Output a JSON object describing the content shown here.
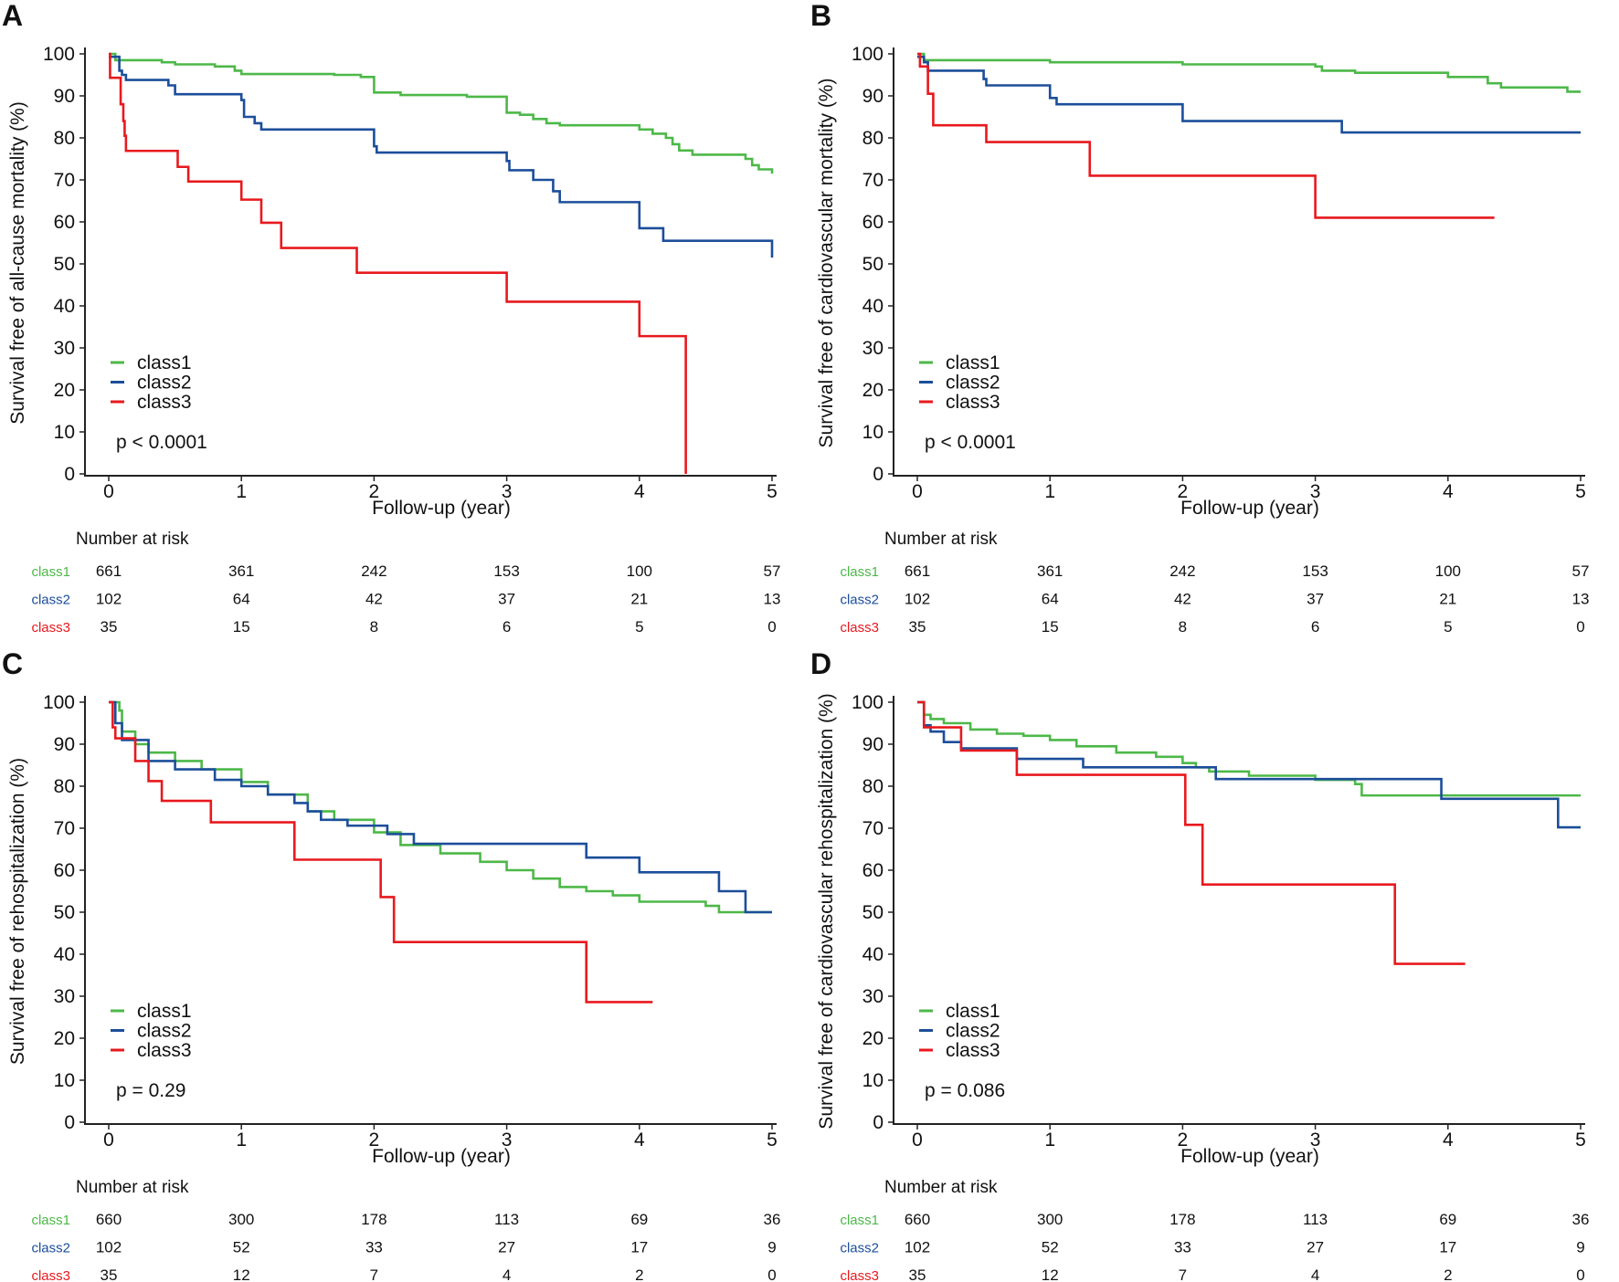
{
  "colors": {
    "class1": "#4db848",
    "class2": "#1c4e9a",
    "class3": "#e8191e"
  },
  "chart_data": [
    {
      "type": "line",
      "panel": "A",
      "ylabel": "Survival free of all-cause mortality (%)",
      "xlabel": "Follow-up (year)",
      "xlim": [
        0,
        5
      ],
      "ylim": [
        0,
        100
      ],
      "xticks": [
        "0",
        "1",
        "2",
        "3",
        "4",
        "5"
      ],
      "yticks": [
        "0",
        "10",
        "20",
        "30",
        "40",
        "50",
        "60",
        "70",
        "80",
        "90",
        "100"
      ],
      "legend": [
        "class1",
        "class2",
        "class3"
      ],
      "legend_position": "bottom-left",
      "pvalue": "p < 0.0001",
      "risk_title": "Number at risk",
      "risk_table": {
        "class1": [
          "661",
          "361",
          "242",
          "153",
          "100",
          "57"
        ],
        "class2": [
          "102",
          "64",
          "42",
          "37",
          "21",
          "13"
        ],
        "class3": [
          "35",
          "15",
          "8",
          "6",
          "5",
          "0"
        ]
      },
      "series": [
        {
          "name": "class1",
          "end": 5,
          "steps": [
            [
              0,
              100
            ],
            [
              0.05,
              98.5
            ],
            [
              0.4,
              98
            ],
            [
              0.5,
              97.5
            ],
            [
              0.8,
              97
            ],
            [
              0.95,
              96
            ],
            [
              1.0,
              95.2
            ],
            [
              1.7,
              95
            ],
            [
              1.9,
              94.5
            ],
            [
              2.0,
              90.8
            ],
            [
              2.2,
              90.2
            ],
            [
              2.7,
              89.8
            ],
            [
              3.0,
              86
            ],
            [
              3.1,
              85.5
            ],
            [
              3.2,
              84.5
            ],
            [
              3.3,
              83.5
            ],
            [
              3.4,
              83
            ],
            [
              4.0,
              82
            ],
            [
              4.1,
              81
            ],
            [
              4.2,
              80
            ],
            [
              4.25,
              78.5
            ],
            [
              4.3,
              77
            ],
            [
              4.4,
              76
            ],
            [
              4.8,
              75
            ],
            [
              4.85,
              73.5
            ],
            [
              4.9,
              72.5
            ],
            [
              5.0,
              71.5
            ]
          ]
        },
        {
          "name": "class2",
          "end": 5,
          "steps": [
            [
              0,
              99.3
            ],
            [
              0.08,
              96
            ],
            [
              0.1,
              95
            ],
            [
              0.13,
              93.8
            ],
            [
              0.45,
              92.5
            ],
            [
              0.5,
              90.4
            ],
            [
              1.0,
              89
            ],
            [
              1.02,
              85
            ],
            [
              1.1,
              83.5
            ],
            [
              1.15,
              82
            ],
            [
              2.0,
              78
            ],
            [
              2.02,
              76.5
            ],
            [
              3.0,
              74.5
            ],
            [
              3.02,
              72.3
            ],
            [
              3.2,
              70
            ],
            [
              3.35,
              67.3
            ],
            [
              3.4,
              64.7
            ],
            [
              4.0,
              58.5
            ],
            [
              4.18,
              55.5
            ],
            [
              5.0,
              51.5
            ]
          ]
        },
        {
          "name": "class3",
          "end": 4.35,
          "steps": [
            [
              0,
              100
            ],
            [
              0.01,
              94.3
            ],
            [
              0.09,
              88
            ],
            [
              0.11,
              84
            ],
            [
              0.12,
              80.5
            ],
            [
              0.13,
              76.9
            ],
            [
              0.52,
              73.1
            ],
            [
              0.6,
              69.6
            ],
            [
              1.0,
              65.3
            ],
            [
              1.15,
              59.8
            ],
            [
              1.3,
              53.8
            ],
            [
              1.87,
              47.9
            ],
            [
              3.0,
              41
            ],
            [
              4.0,
              32.8
            ],
            [
              4.35,
              0
            ]
          ]
        }
      ]
    },
    {
      "type": "line",
      "panel": "B",
      "ylabel": "Survival free of cardiovascular mortality (%)",
      "xlabel": "Follow-up (year)",
      "xlim": [
        0,
        5
      ],
      "ylim": [
        0,
        100
      ],
      "xticks": [
        "0",
        "1",
        "2",
        "3",
        "4",
        "5"
      ],
      "yticks": [
        "0",
        "10",
        "20",
        "30",
        "40",
        "50",
        "60",
        "70",
        "80",
        "90",
        "100"
      ],
      "legend": [
        "class1",
        "class2",
        "class3"
      ],
      "legend_position": "bottom-left",
      "pvalue": "p < 0.0001",
      "risk_title": "Number at risk",
      "risk_table": {
        "class1": [
          "661",
          "361",
          "242",
          "153",
          "100",
          "57"
        ],
        "class2": [
          "102",
          "64",
          "42",
          "37",
          "21",
          "13"
        ],
        "class3": [
          "35",
          "15",
          "8",
          "6",
          "5",
          "0"
        ]
      },
      "series": [
        {
          "name": "class1",
          "end": 5,
          "steps": [
            [
              0,
              100
            ],
            [
              0.05,
              98.5
            ],
            [
              1.0,
              98
            ],
            [
              2.0,
              97.5
            ],
            [
              3.0,
              97
            ],
            [
              3.05,
              96
            ],
            [
              3.3,
              95.5
            ],
            [
              4.0,
              94.5
            ],
            [
              4.3,
              93
            ],
            [
              4.4,
              92
            ],
            [
              4.9,
              91
            ]
          ]
        },
        {
          "name": "class2",
          "end": 5,
          "steps": [
            [
              0,
              99.3
            ],
            [
              0.05,
              98
            ],
            [
              0.08,
              96
            ],
            [
              0.5,
              94
            ],
            [
              0.52,
              92.5
            ],
            [
              1.0,
              89.5
            ],
            [
              1.05,
              88
            ],
            [
              2.0,
              84
            ],
            [
              3.2,
              81.3
            ]
          ]
        },
        {
          "name": "class3",
          "end": 4.35,
          "steps": [
            [
              0,
              100
            ],
            [
              0.02,
              97
            ],
            [
              0.08,
              90.5
            ],
            [
              0.12,
              83
            ],
            [
              0.52,
              79
            ],
            [
              1.3,
              71
            ],
            [
              3.0,
              61
            ]
          ]
        }
      ]
    },
    {
      "type": "line",
      "panel": "C",
      "ylabel": "Survival free of rehospitalization (%)",
      "xlabel": "Follow-up (year)",
      "xlim": [
        0,
        5
      ],
      "ylim": [
        0,
        100
      ],
      "xticks": [
        "0",
        "1",
        "2",
        "3",
        "4",
        "5"
      ],
      "yticks": [
        "0",
        "10",
        "20",
        "30",
        "40",
        "50",
        "60",
        "70",
        "80",
        "90",
        "100"
      ],
      "legend": [
        "class1",
        "class2",
        "class3"
      ],
      "legend_position": "bottom-left",
      "pvalue": "p = 0.29",
      "risk_title": "Number at risk",
      "risk_table": {
        "class1": [
          "660",
          "300",
          "178",
          "113",
          "69",
          "36"
        ],
        "class2": [
          "102",
          "52",
          "33",
          "27",
          "17",
          "9"
        ],
        "class3": [
          "35",
          "12",
          "7",
          "4",
          "2",
          "0"
        ]
      },
      "series": [
        {
          "name": "class1",
          "end": 5,
          "steps": [
            [
              -0.1,
              100
            ],
            [
              0.08,
              98
            ],
            [
              0.1,
              93
            ],
            [
              0.2,
              90
            ],
            [
              0.3,
              88
            ],
            [
              0.5,
              86
            ],
            [
              0.7,
              84
            ],
            [
              1.0,
              81
            ],
            [
              1.2,
              78
            ],
            [
              1.5,
              74
            ],
            [
              1.7,
              72
            ],
            [
              2.0,
              69
            ],
            [
              2.2,
              66
            ],
            [
              2.5,
              64
            ],
            [
              2.8,
              62
            ],
            [
              3.0,
              60
            ],
            [
              3.2,
              58
            ],
            [
              3.4,
              56
            ],
            [
              3.6,
              55
            ],
            [
              3.8,
              54
            ],
            [
              4.0,
              52.5
            ],
            [
              4.5,
              51.5
            ],
            [
              4.6,
              50
            ]
          ]
        },
        {
          "name": "class2",
          "end": 5,
          "steps": [
            [
              0,
              100
            ],
            [
              0.05,
              95
            ],
            [
              0.1,
              91
            ],
            [
              0.3,
              86
            ],
            [
              0.5,
              84
            ],
            [
              0.8,
              81.5
            ],
            [
              1.0,
              80
            ],
            [
              1.2,
              78
            ],
            [
              1.4,
              76
            ],
            [
              1.5,
              74
            ],
            [
              1.6,
              72
            ],
            [
              1.8,
              70.6
            ],
            [
              2.1,
              68.6
            ],
            [
              2.3,
              66.3
            ],
            [
              3.6,
              63
            ],
            [
              4.0,
              59.5
            ],
            [
              4.6,
              55
            ],
            [
              4.8,
              50
            ]
          ]
        },
        {
          "name": "class3",
          "end": 4.1,
          "steps": [
            [
              0,
              100
            ],
            [
              0.03,
              94
            ],
            [
              0.05,
              91.4
            ],
            [
              0.2,
              86
            ],
            [
              0.3,
              81.2
            ],
            [
              0.4,
              76.5
            ],
            [
              0.77,
              71.4
            ],
            [
              1.4,
              62.5
            ],
            [
              2.05,
              53.6
            ],
            [
              2.15,
              42.9
            ],
            [
              3.6,
              28.6
            ]
          ]
        }
      ]
    },
    {
      "type": "line",
      "panel": "D",
      "ylabel": "Survival free of cardiovascular rehospitalization (%)",
      "xlabel": "Follow-up (year)",
      "xlim": [
        0,
        5
      ],
      "ylim": [
        0,
        100
      ],
      "xticks": [
        "0",
        "1",
        "2",
        "3",
        "4",
        "5"
      ],
      "yticks": [
        "0",
        "10",
        "20",
        "30",
        "40",
        "50",
        "60",
        "70",
        "80",
        "90",
        "100"
      ],
      "legend": [
        "class1",
        "class2",
        "class3"
      ],
      "legend_position": "bottom-left",
      "pvalue": "p = 0.086",
      "risk_title": "Number at risk",
      "risk_table": {
        "class1": [
          "660",
          "300",
          "178",
          "113",
          "69",
          "36"
        ],
        "class2": [
          "102",
          "52",
          "33",
          "27",
          "17",
          "9"
        ],
        "class3": [
          "35",
          "12",
          "7",
          "4",
          "2",
          "0"
        ]
      },
      "series": [
        {
          "name": "class1",
          "end": 5,
          "steps": [
            [
              -0.1,
              100
            ],
            [
              0.05,
              97
            ],
            [
              0.1,
              96
            ],
            [
              0.2,
              95
            ],
            [
              0.4,
              93.5
            ],
            [
              0.6,
              92.5
            ],
            [
              0.8,
              92
            ],
            [
              1.0,
              91
            ],
            [
              1.2,
              89.5
            ],
            [
              1.5,
              88
            ],
            [
              1.8,
              87
            ],
            [
              2.0,
              85.5
            ],
            [
              2.1,
              84.5
            ],
            [
              2.2,
              83.5
            ],
            [
              2.5,
              82.5
            ],
            [
              3.0,
              81.5
            ],
            [
              3.3,
              80.5
            ],
            [
              3.35,
              77.8
            ]
          ]
        },
        {
          "name": "class2",
          "end": 5,
          "steps": [
            [
              0,
              100
            ],
            [
              0.05,
              94.5
            ],
            [
              0.1,
              93
            ],
            [
              0.2,
              90.5
            ],
            [
              0.33,
              89
            ],
            [
              0.75,
              86.5
            ],
            [
              1.25,
              84.5
            ],
            [
              2.25,
              81.7
            ],
            [
              3.95,
              77
            ],
            [
              4.83,
              70.2
            ]
          ]
        },
        {
          "name": "class3",
          "end": 4.13,
          "steps": [
            [
              0,
              100
            ],
            [
              0.05,
              94
            ],
            [
              0.33,
              88.5
            ],
            [
              0.75,
              82.7
            ],
            [
              2.02,
              70.8
            ],
            [
              2.15,
              56.6
            ],
            [
              3.6,
              37.7
            ]
          ]
        }
      ]
    }
  ]
}
